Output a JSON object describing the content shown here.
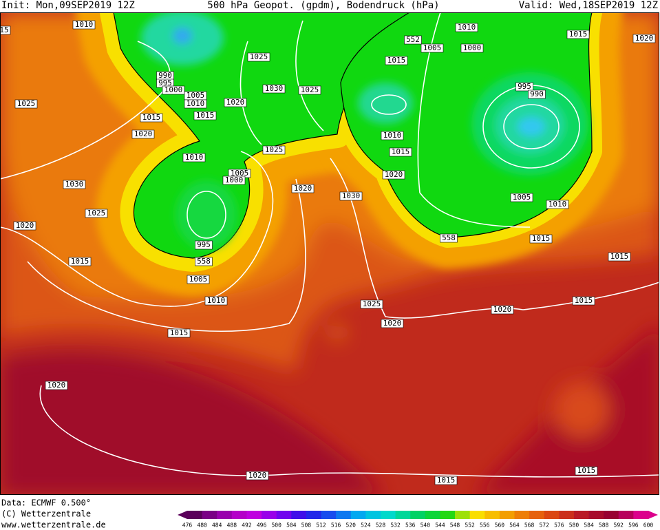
{
  "header": {
    "init": "Init: Mon,09SEP2019 12Z",
    "title": "500 hPa Geopot. (gpdm), Bodendruck (hPa)",
    "valid": "Valid: Wed,18SEP2019 12Z"
  },
  "isobar_labels": [
    "1010",
    "1010",
    "1005",
    "1000",
    "1015",
    "1020",
    "1025",
    "1015",
    "990",
    "995",
    "1000",
    "1030",
    "1025",
    "995",
    "990",
    "1005",
    "1010",
    "1020",
    "1025",
    "1015",
    "1015",
    "1020",
    "1010",
    "1025",
    "1015",
    "1010",
    "1005",
    "1000",
    "1020",
    "1020",
    "1030",
    "1030",
    "1005",
    "1010",
    "1025",
    "1020",
    "995",
    "1015",
    "1015",
    "1015",
    "1005",
    "1010",
    "1015",
    "1025",
    "1020",
    "1020",
    "1015",
    "1020",
    "1020",
    "1015",
    "1015",
    "558",
    "558",
    "552",
    "15"
  ],
  "footer": {
    "data": "Data: ECMWF  0.500°",
    "copyright": "(C) Wetterzentrale",
    "url": "www.wetterzentrale.de"
  },
  "colorbar": {
    "labels": [
      476,
      480,
      484,
      488,
      492,
      496,
      500,
      504,
      508,
      512,
      516,
      520,
      524,
      528,
      532,
      536,
      540,
      544,
      548,
      552,
      556,
      560,
      564,
      568,
      572,
      576,
      580,
      584,
      588,
      592,
      596,
      600
    ]
  }
}
